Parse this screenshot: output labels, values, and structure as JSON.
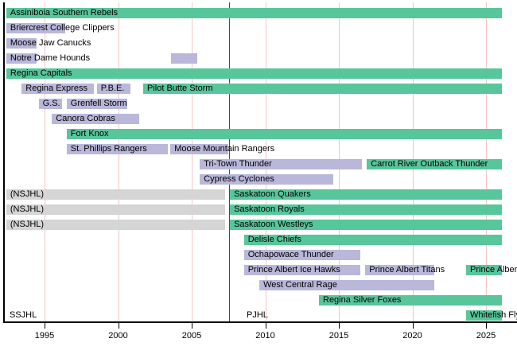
{
  "chart_data": {
    "type": "timeline",
    "title": "",
    "description": "Timeline of SSJHL / PJHL hockey teams",
    "x_axis": {
      "min": 1992.4,
      "max": 2027.1,
      "ticks": [
        1995,
        2000,
        2005,
        2010,
        2015,
        2020,
        2025
      ],
      "grid": true
    },
    "divider_year": 2007.52,
    "colors": {
      "green": "#57c69b",
      "lavender": "#b9b7da",
      "gray": "#d5d5d5",
      "gridline": "#f7c4c4",
      "divider": "#4d4d4d",
      "axis": "#000000",
      "text": "#000000",
      "background": "#ffffff"
    },
    "era_labels": [
      {
        "label": "SSJHL",
        "year": 1992.62
      },
      {
        "label": "PJHL",
        "year": 2008.73
      }
    ],
    "rows": [
      {
        "segments": [
          {
            "label": "Assiniboia Southern Rebels",
            "start": 1992.4,
            "end": 2026.1,
            "color": "green"
          }
        ]
      },
      {
        "segments": [
          {
            "label": "Briercrest College Clippers",
            "start": 1992.4,
            "end": 1996.4,
            "color": "lavender"
          }
        ]
      },
      {
        "segments": [
          {
            "label": "Moose Jaw Canucks",
            "start": 1992.4,
            "end": 1994.45,
            "color": "lavender"
          }
        ]
      },
      {
        "segments": [
          {
            "label": "Notre Dame Hounds",
            "start": 1992.4,
            "end": 1994.45,
            "color": "lavender"
          },
          {
            "label": "",
            "start": 2003.6,
            "end": 2005.4,
            "color": "lavender"
          }
        ]
      },
      {
        "segments": [
          {
            "label": "Regina Capitals",
            "start": 1992.4,
            "end": 2026.1,
            "color": "green"
          }
        ]
      },
      {
        "segments": [
          {
            "label": "Regina Express",
            "start": 1993.45,
            "end": 1998.35,
            "color": "lavender"
          },
          {
            "label": "P.B.E.",
            "start": 1998.55,
            "end": 2000.85,
            "color": "lavender"
          },
          {
            "label": "Pilot Butte Storm",
            "start": 2001.7,
            "end": 2026.1,
            "color": "green"
          }
        ]
      },
      {
        "segments": [
          {
            "label": "G.S.",
            "start": 1994.6,
            "end": 1996.2,
            "color": "lavender"
          },
          {
            "label": "Grenfell Storm",
            "start": 1996.5,
            "end": 2000.6,
            "color": "lavender"
          }
        ]
      },
      {
        "segments": [
          {
            "label": "Canora Cobras",
            "start": 1995.5,
            "end": 2001.45,
            "color": "lavender"
          }
        ]
      },
      {
        "segments": [
          {
            "label": "Fort Knox",
            "start": 1996.5,
            "end": 2026.1,
            "color": "green"
          }
        ]
      },
      {
        "segments": [
          {
            "label": "St. Phillips Rangers",
            "start": 1996.5,
            "end": 2003.4,
            "color": "lavender"
          },
          {
            "label": "Moose Mountain Rangers",
            "start": 2003.55,
            "end": 2007.5,
            "color": "lavender"
          }
        ]
      },
      {
        "segments": [
          {
            "label": "Tri-Town Thunder",
            "start": 2005.55,
            "end": 2016.55,
            "color": "lavender"
          },
          {
            "label": "Carrot River Outback Thunder",
            "start": 2016.9,
            "end": 2026.1,
            "color": "green"
          }
        ]
      },
      {
        "segments": [
          {
            "label": "Cypress Cyclones",
            "start": 2005.55,
            "end": 2014.65,
            "color": "lavender"
          }
        ]
      },
      {
        "segments": [
          {
            "label": "(NSJHL)",
            "start": 1992.4,
            "end": 2007.25,
            "color": "gray"
          },
          {
            "label": "Saskatoon Quakers",
            "start": 2007.6,
            "end": 2026.1,
            "color": "green"
          }
        ]
      },
      {
        "segments": [
          {
            "label": "(NSJHL)",
            "start": 1992.4,
            "end": 2007.25,
            "color": "gray"
          },
          {
            "label": "Saskatoon Royals",
            "start": 2007.6,
            "end": 2026.1,
            "color": "green"
          }
        ]
      },
      {
        "segments": [
          {
            "label": "(NSJHL)",
            "start": 1992.4,
            "end": 2007.25,
            "color": "gray"
          },
          {
            "label": "Saskatoon Westleys",
            "start": 2007.6,
            "end": 2026.1,
            "color": "green"
          }
        ]
      },
      {
        "segments": [
          {
            "label": "Delisle Chiefs",
            "start": 2008.55,
            "end": 2026.1,
            "color": "green"
          }
        ]
      },
      {
        "segments": [
          {
            "label": "Ochapowace Thunder",
            "start": 2008.55,
            "end": 2016.45,
            "color": "lavender"
          }
        ]
      },
      {
        "segments": [
          {
            "label": "Prince Albert Ice Hawks",
            "start": 2008.55,
            "end": 2016.45,
            "color": "lavender"
          },
          {
            "label": "Prince Albert Titans",
            "start": 2016.8,
            "end": 2021.5,
            "color": "lavender"
          },
          {
            "label": "Prince Albert",
            "start": 2023.65,
            "end": 2026.1,
            "color": "green"
          }
        ]
      },
      {
        "segments": [
          {
            "label": "West Central Rage",
            "start": 2009.6,
            "end": 2021.5,
            "color": "lavender"
          }
        ]
      },
      {
        "segments": [
          {
            "label": "Regina Silver Foxes",
            "start": 2013.65,
            "end": 2026.1,
            "color": "green"
          }
        ]
      },
      {
        "segments": [
          {
            "label": "Whitefish Fly",
            "start": 2023.65,
            "end": 2026.1,
            "color": "green"
          }
        ]
      }
    ]
  }
}
